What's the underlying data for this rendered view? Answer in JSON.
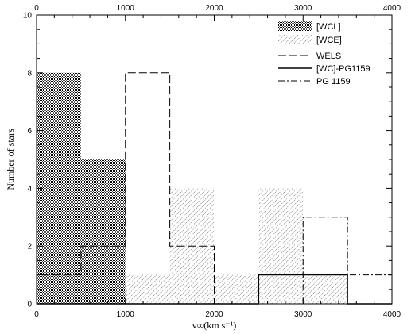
{
  "chart_data": {
    "type": "bar",
    "xlabel": "v∞(km s⁻¹)",
    "ylabel": "Number of stars",
    "xlim": [
      0,
      4000
    ],
    "ylim": [
      0,
      10
    ],
    "x_ticks": [
      "0",
      "1000",
      "2000",
      "3000",
      "4000"
    ],
    "x_ticks_top": [
      "0",
      "1000",
      "2000",
      "3000",
      "4000"
    ],
    "y_ticks": [
      "0",
      "2",
      "4",
      "6",
      "8",
      "10"
    ],
    "grid": false,
    "legend_position": "top-right",
    "bin_edges": [
      0,
      500,
      1000,
      1500,
      2000,
      2500,
      3000,
      3500,
      4000
    ],
    "series": [
      {
        "name": "[WCL]",
        "style": "dense-dotted-fill",
        "values": [
          8,
          5,
          0,
          0,
          0,
          0,
          0,
          0
        ]
      },
      {
        "name": "[WCE]",
        "style": "hatched-fill",
        "values": [
          0,
          0,
          1,
          4,
          1,
          4,
          1,
          0
        ]
      },
      {
        "name": "WELS",
        "style": "dashed-outline",
        "values": [
          1,
          2,
          8,
          2,
          0,
          0,
          0,
          0
        ]
      },
      {
        "name": "[WC]-PG1159",
        "style": "solid-outline",
        "values": [
          0,
          0,
          0,
          0,
          0,
          1,
          1,
          0
        ]
      },
      {
        "name": "PG 1159",
        "style": "dash-dot-outline",
        "values": [
          0,
          0,
          0,
          0,
          0,
          0,
          3,
          1
        ]
      }
    ]
  }
}
